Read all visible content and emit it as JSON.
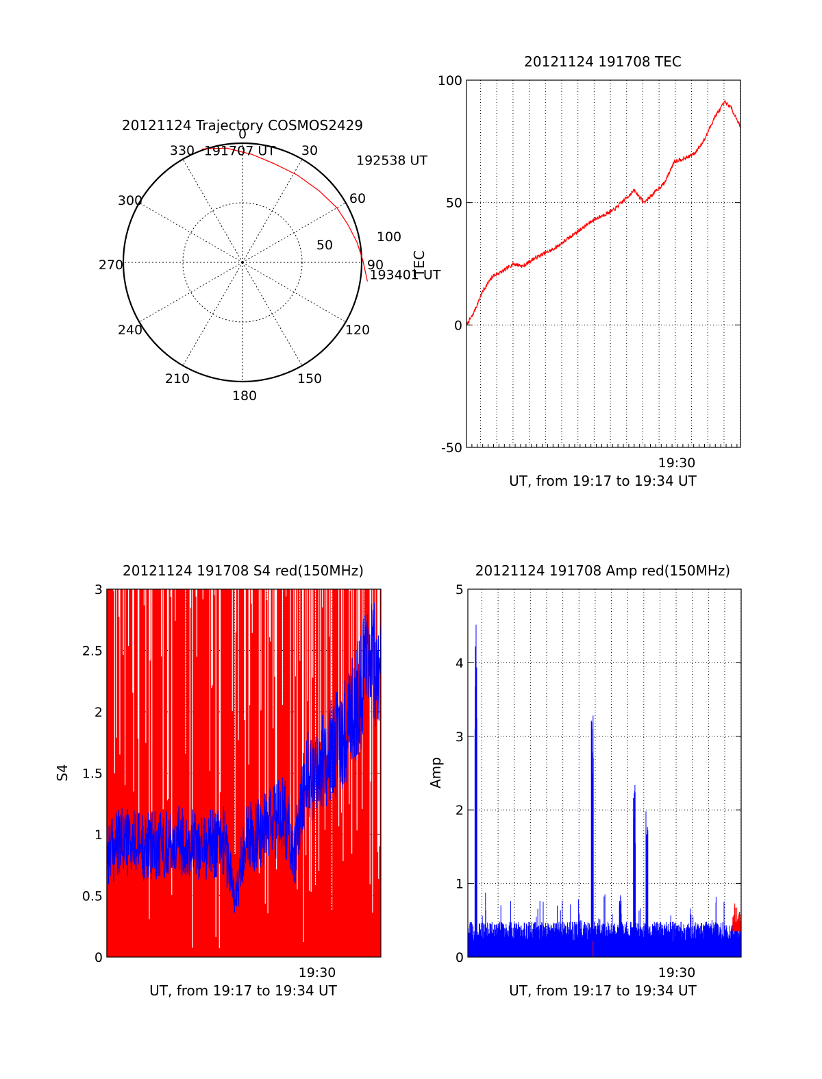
{
  "chart_data": [
    {
      "id": "trajectory",
      "type": "polar",
      "title": "20121124 Trajectory COSMOS2429",
      "ylabel": "",
      "angle_labels": [
        "0",
        "30",
        "60",
        "90",
        "120",
        "150",
        "180",
        "210",
        "240",
        "270",
        "300",
        "330"
      ],
      "radial_labels": [
        "50",
        "100"
      ],
      "elevation_range": [
        0,
        100
      ],
      "grid": true,
      "series": [
        {
          "color": "#ff0000",
          "points": [
            {
              "azimuth": 340.3,
              "zenith": 101.0
            },
            {
              "azimuth": 352.0,
              "zenith": 96.8
            },
            {
              "azimuth": 4.9,
              "zenith": 91.0
            },
            {
              "azimuth": 17.5,
              "zenith": 87.0
            },
            {
              "azimuth": 32.0,
              "zenith": 86.5
            },
            {
              "azimuth": 47.0,
              "zenith": 88.0
            },
            {
              "azimuth": 60.0,
              "zenith": 91.5
            },
            {
              "azimuth": 70.5,
              "zenith": 94.0
            },
            {
              "azimuth": 80.0,
              "zenith": 97.5
            },
            {
              "azimuth": 89.0,
              "zenith": 101.0
            },
            {
              "azimuth": 98.6,
              "zenith": 106.0
            }
          ]
        }
      ],
      "annotations": [
        {
          "text": "191707 UT",
          "azimuth": 340.3,
          "zenith": 101.0
        },
        {
          "text": "192538 UT",
          "azimuth": 47.0,
          "zenith": 88.0
        },
        {
          "text": "193401 UT",
          "azimuth": 98.6,
          "zenith": 106.0
        }
      ]
    },
    {
      "id": "tec",
      "type": "line",
      "title": "20121124 191708 TEC",
      "xlabel": "UT, from 19:17 to 19:34 UT",
      "ylabel": "TEC",
      "xlim": [
        "19:17:08",
        "19:34:01"
      ],
      "ylim": [
        -50,
        100
      ],
      "yticks": [
        "-50",
        "0",
        "50",
        "100"
      ],
      "xticks": [
        {
          "label": "19:30",
          "time": "19:30:00"
        }
      ],
      "grid": true,
      "series": [
        {
          "color": "#ff0000",
          "x": [
            "19:17:08",
            "19:17:31",
            "19:18:09",
            "19:18:46",
            "19:19:23",
            "19:20:01",
            "19:20:38",
            "19:21:15",
            "19:21:52",
            "19:22:30",
            "19:23:07",
            "19:23:44",
            "19:24:22",
            "19:24:59",
            "19:25:36",
            "19:26:13",
            "19:26:51",
            "19:27:28",
            "19:28:05",
            "19:28:42",
            "19:29:20",
            "19:29:57",
            "19:30:34",
            "19:31:12",
            "19:31:49",
            "19:32:26",
            "19:33:03",
            "19:33:25",
            "19:34:01"
          ],
          "y": [
            0,
            4,
            14,
            20,
            22,
            25,
            24,
            27,
            29,
            31,
            34,
            37,
            40,
            43,
            45,
            47,
            51,
            55,
            50,
            54,
            58,
            67,
            68,
            70,
            76,
            85,
            91,
            89,
            81
          ]
        }
      ]
    },
    {
      "id": "s4",
      "type": "line",
      "title": "20121124 191708 S4 red(150MHz)",
      "xlabel": "UT, from 19:17 to 19:34 UT",
      "ylabel": "S4",
      "xlim": [
        "19:17:08",
        "19:34:01"
      ],
      "ylim": [
        0,
        3
      ],
      "yticks": [
        "0",
        "0.5",
        "1",
        "1.5",
        "2",
        "2.5",
        "3"
      ],
      "xticks": [
        {
          "label": "19:30",
          "time": "19:30:00"
        }
      ],
      "grid": true,
      "series": [
        {
          "color": "#ff0000",
          "x": [
            "19:17:08",
            "19:34:01"
          ],
          "y_range": [
            0,
            3
          ]
        },
        {
          "color": "#0000ff",
          "x": [
            "19:17:08",
            "19:18:09",
            "19:19:23",
            "19:20:38",
            "19:21:52",
            "19:23:07",
            "19:24:22",
            "19:25:05",
            "19:25:36",
            "19:26:51",
            "19:28:05",
            "19:28:42",
            "19:29:20",
            "19:30:34",
            "19:31:49",
            "19:33:03",
            "19:34:01"
          ],
          "y": [
            0.85,
            0.95,
            0.9,
            0.92,
            0.95,
            0.9,
            0.95,
            0.45,
            0.95,
            1.05,
            1.15,
            0.8,
            1.45,
            1.6,
            1.85,
            2.3,
            2.4
          ]
        }
      ]
    },
    {
      "id": "amp",
      "type": "line",
      "title": "20121124 191708 Amp red(150MHz)",
      "xlabel": "UT, from 19:17 to 19:34 UT",
      "ylabel": "Amp",
      "xlim": [
        "19:17:08",
        "19:34:01"
      ],
      "ylim": [
        0,
        5
      ],
      "yticks": [
        "0",
        "1",
        "2",
        "3",
        "4",
        "5"
      ],
      "xticks": [
        {
          "label": "19:30",
          "time": "19:30:00"
        }
      ],
      "grid": true,
      "series": [
        {
          "color": "#0000ff",
          "baseline": 0.4,
          "spikes": [
            {
              "time": "19:17:38",
              "value": 4.55
            },
            {
              "time": "19:24:49",
              "value": 3.35
            },
            {
              "time": "19:27:25",
              "value": 2.35
            },
            {
              "time": "19:28:12",
              "value": 1.98
            },
            {
              "time": "19:26:33",
              "value": 0.85
            }
          ]
        },
        {
          "color": "#ff0000",
          "x": [
            "19:24:52",
            "19:33:30",
            "19:34:01"
          ],
          "y": [
            0.22,
            0.75,
            0.6
          ]
        }
      ]
    }
  ]
}
